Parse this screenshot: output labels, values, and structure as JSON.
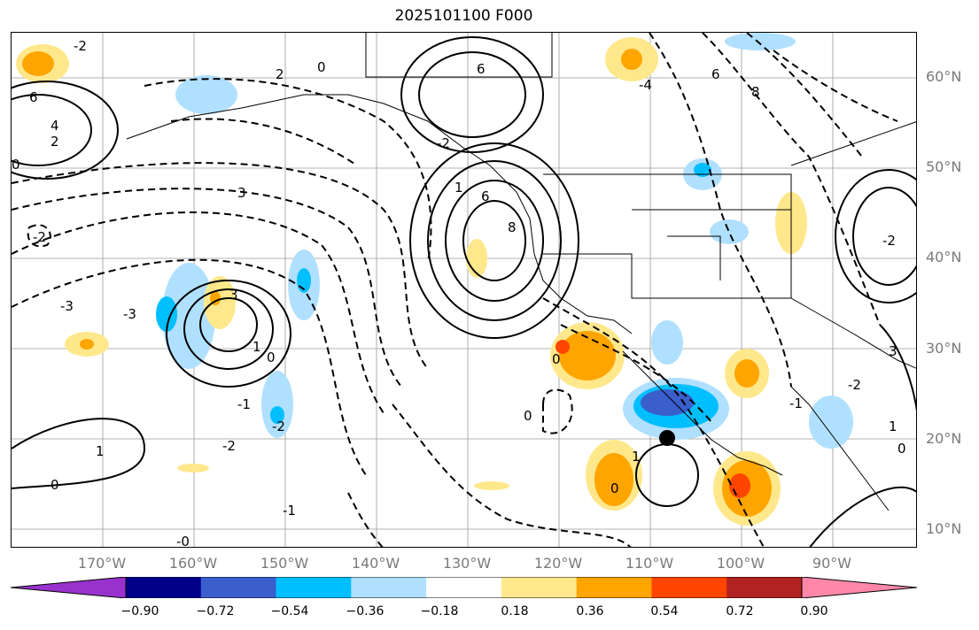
{
  "title": "2025101100 F000",
  "lat_labels": [
    "60°N",
    "50°N",
    "40°N",
    "30°N",
    "20°N",
    "10°N"
  ],
  "lon_labels": [
    "170°W",
    "160°W",
    "150°W",
    "140°W",
    "130°W",
    "120°W",
    "110°W",
    "100°W",
    "90°W"
  ],
  "contour_labels": [
    "6",
    "4",
    "2",
    "0",
    "-2",
    "3",
    "2",
    "6",
    "0",
    "-4",
    "6",
    "8",
    "-3",
    "-2",
    "-3",
    "3",
    "1",
    "-2",
    "1",
    "-1",
    "-2",
    "0",
    "1",
    "-1",
    "0",
    "-0",
    "8",
    "6",
    "-2",
    "1",
    "0",
    "-1",
    "-2",
    "1",
    "0",
    "-2",
    "0",
    "0",
    "3"
  ],
  "colorbar": {
    "ticks": [
      "−0.90",
      "−0.72",
      "−0.54",
      "−0.36",
      "−0.18",
      "0.18",
      "0.36",
      "0.54",
      "0.72",
      "0.90"
    ],
    "colors": [
      "#9932cc",
      "#00008b",
      "#3a5fcd",
      "#00bfff",
      "#b0e0ff",
      "#ffffff",
      "#ffe88c",
      "#ffa500",
      "#ff4500",
      "#b22222",
      "#ff88aa"
    ]
  },
  "features": {
    "marker": "storm-center-marker"
  }
}
